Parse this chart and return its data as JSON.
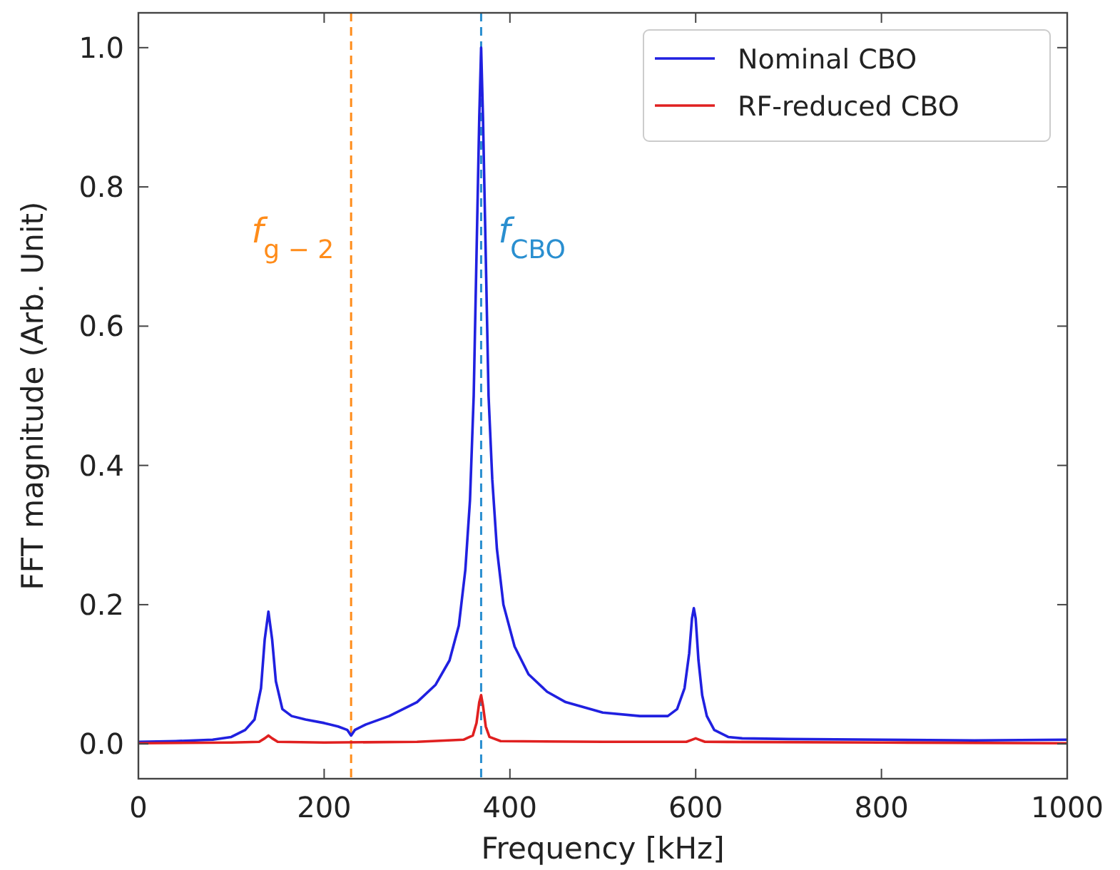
{
  "chart_data": {
    "type": "line",
    "xlabel": "Frequency [kHz]",
    "ylabel": "FFT magnitude (Arb. Unit)",
    "xlim": [
      0,
      1000
    ],
    "ylim": [
      -0.05,
      1.05
    ],
    "xticks": [
      0,
      200,
      400,
      600,
      800,
      1000
    ],
    "yticks": [
      {
        "value": 0,
        "label": "0.0"
      },
      {
        "value": 0.2,
        "label": "0.2"
      },
      {
        "value": 0.4,
        "label": "0.4"
      },
      {
        "value": 0.6,
        "label": "0.6"
      },
      {
        "value": 0.8,
        "label": "0.8"
      },
      {
        "value": 1,
        "label": "1.0"
      }
    ],
    "grid": false,
    "legend": "top right",
    "marker": "none",
    "line_style": "solid",
    "series": [
      {
        "name": "Nominal CBO",
        "color": "#2020e0",
        "x": [
          0,
          40,
          80,
          100,
          115,
          125,
          132,
          136,
          140,
          144,
          148,
          155,
          165,
          180,
          200,
          215,
          225,
          229,
          233,
          245,
          270,
          300,
          320,
          335,
          345,
          352,
          357,
          361,
          364,
          367,
          369,
          371,
          374,
          377,
          381,
          386,
          393,
          405,
          420,
          440,
          460,
          500,
          540,
          570,
          580,
          588,
          593,
          596,
          598,
          600,
          603,
          607,
          612,
          620,
          635,
          650,
          700,
          800,
          900,
          1000
        ],
        "values": [
          0.003,
          0.004,
          0.006,
          0.01,
          0.02,
          0.035,
          0.08,
          0.15,
          0.19,
          0.15,
          0.09,
          0.05,
          0.04,
          0.035,
          0.03,
          0.025,
          0.02,
          0.012,
          0.02,
          0.028,
          0.04,
          0.06,
          0.085,
          0.12,
          0.17,
          0.25,
          0.35,
          0.5,
          0.7,
          0.9,
          1.0,
          0.9,
          0.7,
          0.5,
          0.38,
          0.28,
          0.2,
          0.14,
          0.1,
          0.075,
          0.06,
          0.045,
          0.04,
          0.04,
          0.05,
          0.08,
          0.13,
          0.18,
          0.195,
          0.18,
          0.12,
          0.07,
          0.04,
          0.02,
          0.01,
          0.008,
          0.007,
          0.006,
          0.005,
          0.006
        ]
      },
      {
        "name": "RF-reduced CBO",
        "color": "#e02020",
        "x": [
          0,
          100,
          130,
          136,
          140,
          144,
          150,
          200,
          300,
          350,
          360,
          364,
          367,
          369,
          371,
          374,
          378,
          390,
          500,
          590,
          596,
          600,
          604,
          610,
          800,
          1000
        ],
        "values": [
          0.001,
          0.002,
          0.003,
          0.008,
          0.012,
          0.008,
          0.003,
          0.002,
          0.003,
          0.006,
          0.012,
          0.03,
          0.06,
          0.07,
          0.055,
          0.025,
          0.01,
          0.004,
          0.003,
          0.003,
          0.006,
          0.008,
          0.006,
          0.003,
          0.002,
          0.001
        ]
      }
    ],
    "ref_lines": [
      {
        "axis": "x",
        "value": 229,
        "label": "f$_{g − 2}$",
        "color": "#ff8c1a",
        "line_style": "dashed"
      },
      {
        "axis": "x",
        "value": 369,
        "label": "f$_{CBO}$",
        "color": "#2a8fd0",
        "line_style": "dashed"
      }
    ]
  }
}
